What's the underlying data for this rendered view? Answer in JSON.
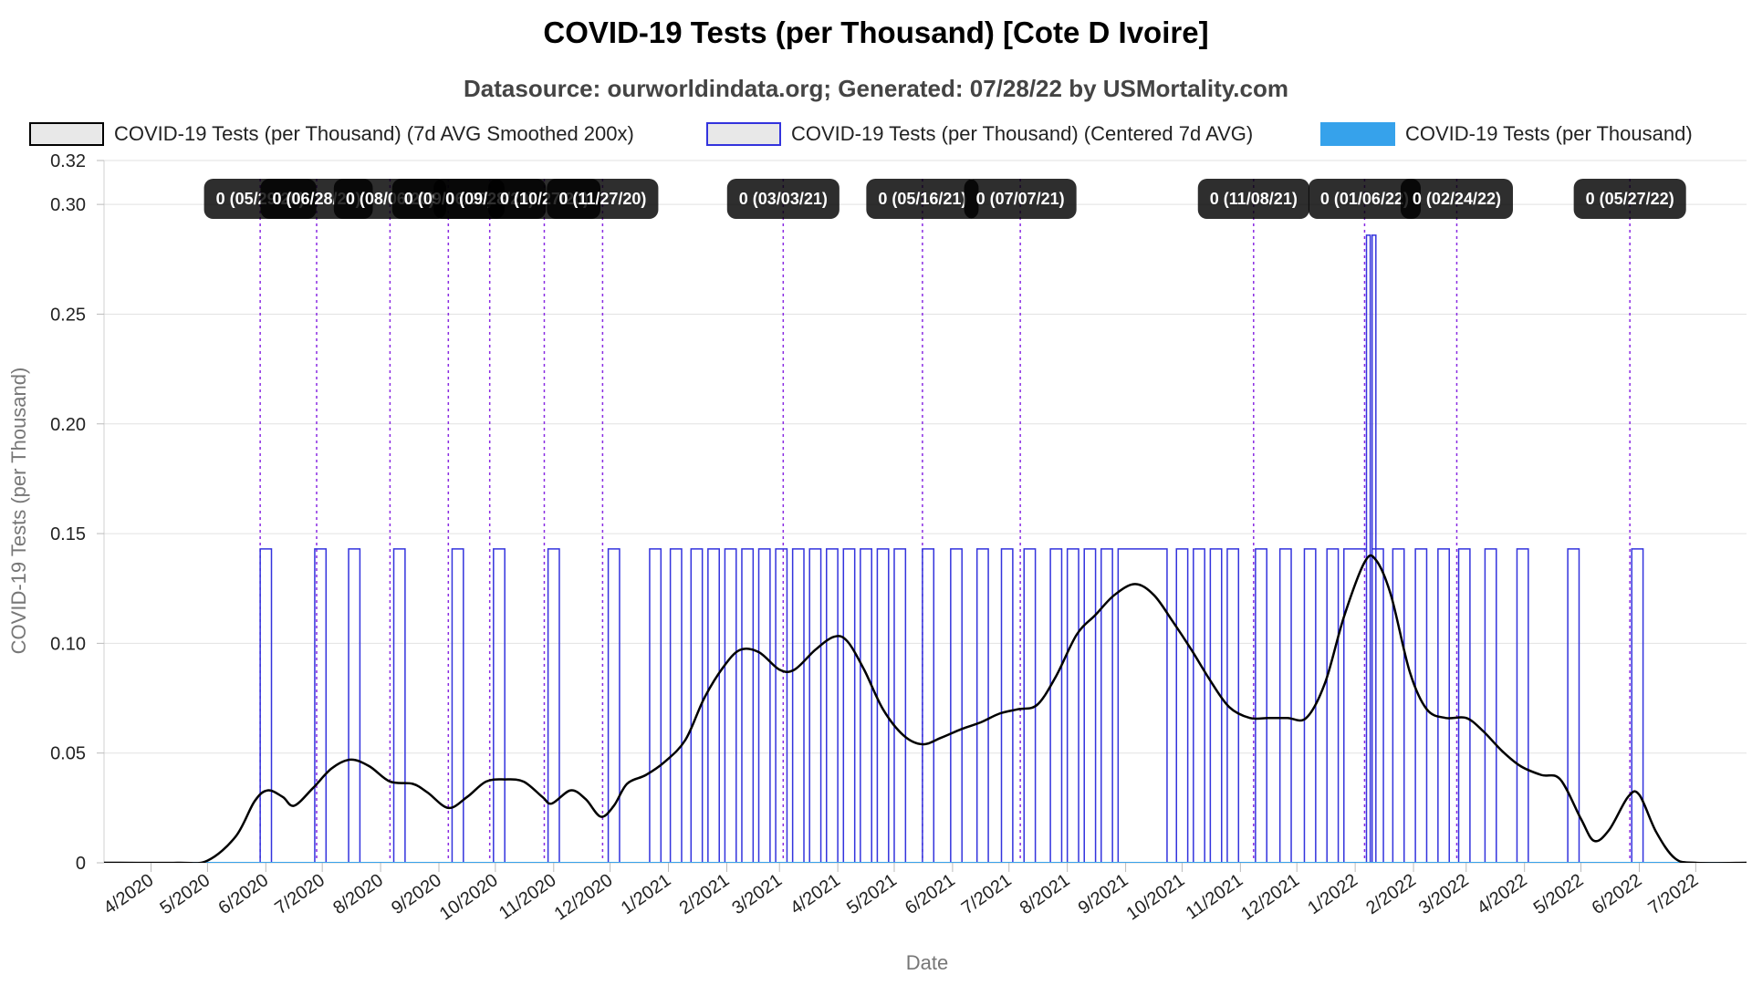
{
  "chart_data": {
    "type": "line",
    "title": "COVID-19 Tests (per Thousand) [Cote D Ivoire]",
    "subtitle": "Datasource: ourworldindata.org; Generated: 07/28/22 by USMortality.com",
    "xlabel": "Date",
    "ylabel": "COVID-19 Tests (per Thousand)",
    "ylim": [
      0,
      0.32
    ],
    "yticks": [
      {
        "value": 0,
        "label": "0"
      },
      {
        "value": 0.05,
        "label": "0.05"
      },
      {
        "value": 0.1,
        "label": "0.10"
      },
      {
        "value": 0.15,
        "label": "0.15"
      },
      {
        "value": 0.2,
        "label": "0.20"
      },
      {
        "value": 0.25,
        "label": "0.25"
      },
      {
        "value": 0.3,
        "label": "0.30"
      },
      {
        "value": 0.32,
        "label": "0.32"
      }
    ],
    "xlim": [
      "2020-03-07",
      "2022-07-28"
    ],
    "xticks": [
      {
        "date": "2020-04-01",
        "label": "4/2020"
      },
      {
        "date": "2020-05-01",
        "label": "5/2020"
      },
      {
        "date": "2020-06-01",
        "label": "6/2020"
      },
      {
        "date": "2020-07-01",
        "label": "7/2020"
      },
      {
        "date": "2020-08-01",
        "label": "8/2020"
      },
      {
        "date": "2020-09-01",
        "label": "9/2020"
      },
      {
        "date": "2020-10-01",
        "label": "10/2020"
      },
      {
        "date": "2020-11-01",
        "label": "11/2020"
      },
      {
        "date": "2020-12-01",
        "label": "12/2020"
      },
      {
        "date": "2021-01-01",
        "label": "1/2021"
      },
      {
        "date": "2021-02-01",
        "label": "2/2021"
      },
      {
        "date": "2021-03-01",
        "label": "3/2021"
      },
      {
        "date": "2021-04-01",
        "label": "4/2021"
      },
      {
        "date": "2021-05-01",
        "label": "5/2021"
      },
      {
        "date": "2021-06-01",
        "label": "6/2021"
      },
      {
        "date": "2021-07-01",
        "label": "7/2021"
      },
      {
        "date": "2021-08-01",
        "label": "8/2021"
      },
      {
        "date": "2021-09-01",
        "label": "9/2021"
      },
      {
        "date": "2021-10-01",
        "label": "10/2021"
      },
      {
        "date": "2021-11-01",
        "label": "11/2021"
      },
      {
        "date": "2021-12-01",
        "label": "12/2021"
      },
      {
        "date": "2022-01-01",
        "label": "1/2022"
      },
      {
        "date": "2022-02-01",
        "label": "2/2022"
      },
      {
        "date": "2022-03-01",
        "label": "3/2022"
      },
      {
        "date": "2022-04-01",
        "label": "4/2022"
      },
      {
        "date": "2022-05-01",
        "label": "5/2022"
      },
      {
        "date": "2022-06-01",
        "label": "6/2022"
      },
      {
        "date": "2022-07-01",
        "label": "7/2022"
      }
    ],
    "grid": true,
    "legend_placement": "top",
    "series": [
      {
        "name": "COVID-19 Tests (per Thousand) (7d AVG Smoothed 200x)",
        "color": "#000000",
        "style": "smooth-line",
        "points": [
          [
            "2020-03-07",
            0
          ],
          [
            "2020-04-15",
            0
          ],
          [
            "2020-05-01",
            0.001
          ],
          [
            "2020-05-16",
            0.012
          ],
          [
            "2020-05-26",
            0.028
          ],
          [
            "2020-06-02",
            0.033
          ],
          [
            "2020-06-10",
            0.03
          ],
          [
            "2020-06-16",
            0.026
          ],
          [
            "2020-06-26",
            0.034
          ],
          [
            "2020-07-06",
            0.043
          ],
          [
            "2020-07-16",
            0.047
          ],
          [
            "2020-07-26",
            0.044
          ],
          [
            "2020-08-06",
            0.037
          ],
          [
            "2020-08-18",
            0.036
          ],
          [
            "2020-08-26",
            0.032
          ],
          [
            "2020-09-06",
            0.025
          ],
          [
            "2020-09-16",
            0.03
          ],
          [
            "2020-09-26",
            0.037
          ],
          [
            "2020-10-06",
            0.038
          ],
          [
            "2020-10-16",
            0.037
          ],
          [
            "2020-10-26",
            0.03
          ],
          [
            "2020-10-31",
            0.027
          ],
          [
            "2020-11-10",
            0.033
          ],
          [
            "2020-11-18",
            0.029
          ],
          [
            "2020-11-26",
            0.021
          ],
          [
            "2020-12-03",
            0.026
          ],
          [
            "2020-12-10",
            0.036
          ],
          [
            "2020-12-20",
            0.04
          ],
          [
            "2020-12-30",
            0.046
          ],
          [
            "2021-01-10",
            0.056
          ],
          [
            "2021-01-20",
            0.075
          ],
          [
            "2021-01-30",
            0.089
          ],
          [
            "2021-02-08",
            0.097
          ],
          [
            "2021-02-18",
            0.096
          ],
          [
            "2021-03-01",
            0.088
          ],
          [
            "2021-03-09",
            0.088
          ],
          [
            "2021-03-20",
            0.097
          ],
          [
            "2021-03-30",
            0.103
          ],
          [
            "2021-04-06",
            0.101
          ],
          [
            "2021-04-15",
            0.088
          ],
          [
            "2021-04-25",
            0.07
          ],
          [
            "2021-05-06",
            0.058
          ],
          [
            "2021-05-16",
            0.054
          ],
          [
            "2021-05-26",
            0.057
          ],
          [
            "2021-06-06",
            0.061
          ],
          [
            "2021-06-16",
            0.064
          ],
          [
            "2021-06-26",
            0.068
          ],
          [
            "2021-07-06",
            0.07
          ],
          [
            "2021-07-16",
            0.072
          ],
          [
            "2021-07-26",
            0.085
          ],
          [
            "2021-08-06",
            0.104
          ],
          [
            "2021-08-16",
            0.113
          ],
          [
            "2021-08-26",
            0.122
          ],
          [
            "2021-09-06",
            0.127
          ],
          [
            "2021-09-16",
            0.122
          ],
          [
            "2021-09-26",
            0.11
          ],
          [
            "2021-10-06",
            0.097
          ],
          [
            "2021-10-16",
            0.083
          ],
          [
            "2021-10-26",
            0.071
          ],
          [
            "2021-11-06",
            0.066
          ],
          [
            "2021-11-16",
            0.066
          ],
          [
            "2021-11-26",
            0.066
          ],
          [
            "2021-12-06",
            0.066
          ],
          [
            "2021-12-16",
            0.082
          ],
          [
            "2021-12-26",
            0.112
          ],
          [
            "2022-01-06",
            0.137
          ],
          [
            "2022-01-12",
            0.138
          ],
          [
            "2022-01-20",
            0.122
          ],
          [
            "2022-01-30",
            0.087
          ],
          [
            "2022-02-08",
            0.07
          ],
          [
            "2022-02-18",
            0.066
          ],
          [
            "2022-03-01",
            0.066
          ],
          [
            "2022-03-10",
            0.06
          ],
          [
            "2022-03-20",
            0.051
          ],
          [
            "2022-03-30",
            0.044
          ],
          [
            "2022-04-10",
            0.04
          ],
          [
            "2022-04-20",
            0.038
          ],
          [
            "2022-05-01",
            0.02
          ],
          [
            "2022-05-08",
            0.01
          ],
          [
            "2022-05-16",
            0.015
          ],
          [
            "2022-05-26",
            0.03
          ],
          [
            "2022-06-01",
            0.031
          ],
          [
            "2022-06-10",
            0.014
          ],
          [
            "2022-06-20",
            0.002
          ],
          [
            "2022-07-01",
            0
          ],
          [
            "2022-07-28",
            0
          ]
        ]
      },
      {
        "name": "COVID-19 Tests (per Thousand) (Centered 7d AVG)",
        "color": "#3333dd",
        "style": "pulses",
        "value": 0.143,
        "pulses": [
          [
            "2020-05-29",
            "2020-06-04"
          ],
          [
            "2020-06-27",
            "2020-07-03"
          ],
          [
            "2020-07-15",
            "2020-07-21"
          ],
          [
            "2020-08-08",
            "2020-08-14"
          ],
          [
            "2020-09-08",
            "2020-09-14"
          ],
          [
            "2020-09-30",
            "2020-10-06"
          ],
          [
            "2020-10-29",
            "2020-11-04"
          ],
          [
            "2020-11-30",
            "2020-12-06"
          ],
          [
            "2020-12-22",
            "2020-12-28"
          ],
          [
            "2021-01-02",
            "2021-01-08"
          ],
          [
            "2021-01-13",
            "2021-01-19"
          ],
          [
            "2021-01-22",
            "2021-01-28"
          ],
          [
            "2021-01-31",
            "2021-02-06"
          ],
          [
            "2021-02-09",
            "2021-02-15"
          ],
          [
            "2021-02-18",
            "2021-02-24"
          ],
          [
            "2021-02-27",
            "2021-03-05"
          ],
          [
            "2021-03-08",
            "2021-03-14"
          ],
          [
            "2021-03-17",
            "2021-03-23"
          ],
          [
            "2021-03-26",
            "2021-04-01"
          ],
          [
            "2021-04-04",
            "2021-04-10"
          ],
          [
            "2021-04-13",
            "2021-04-19"
          ],
          [
            "2021-04-22",
            "2021-04-28"
          ],
          [
            "2021-05-01",
            "2021-05-07"
          ],
          [
            "2021-05-16",
            "2021-05-22"
          ],
          [
            "2021-05-31",
            "2021-06-06"
          ],
          [
            "2021-06-14",
            "2021-06-20"
          ],
          [
            "2021-06-27",
            "2021-07-03"
          ],
          [
            "2021-07-09",
            "2021-07-15"
          ],
          [
            "2021-07-23",
            "2021-07-29"
          ],
          [
            "2021-08-01",
            "2021-08-07"
          ],
          [
            "2021-08-10",
            "2021-08-16"
          ],
          [
            "2021-08-19",
            "2021-08-25"
          ],
          [
            "2021-08-28",
            "2021-09-23"
          ],
          [
            "2021-09-28",
            "2021-10-04"
          ],
          [
            "2021-10-07",
            "2021-10-13"
          ],
          [
            "2021-10-16",
            "2021-10-22"
          ],
          [
            "2021-10-25",
            "2021-10-31"
          ],
          [
            "2021-11-09",
            "2021-11-15"
          ],
          [
            "2021-11-22",
            "2021-11-28"
          ],
          [
            "2021-12-05",
            "2021-12-11"
          ],
          [
            "2021-12-17",
            "2021-12-23"
          ],
          [
            "2021-12-26",
            "2022-01-07"
          ],
          [
            "2022-01-10",
            "2022-01-16"
          ],
          [
            "2022-01-21",
            "2022-01-27"
          ],
          [
            "2022-02-02",
            "2022-02-08"
          ],
          [
            "2022-02-14",
            "2022-02-20"
          ],
          [
            "2022-02-25",
            "2022-03-03"
          ],
          [
            "2022-03-11",
            "2022-03-17"
          ],
          [
            "2022-03-28",
            "2022-04-03"
          ],
          [
            "2022-04-24",
            "2022-04-30"
          ],
          [
            "2022-05-28",
            "2022-06-03"
          ]
        ],
        "spikes": [
          [
            "2022-01-07",
            "2022-01-09",
            0.286
          ],
          [
            "2022-01-10",
            "2022-01-12",
            0.286
          ]
        ]
      },
      {
        "name": "COVID-19 Tests (per Thousand)",
        "color": "#36a2eb",
        "style": "line",
        "points": [
          [
            "2020-03-07",
            0
          ],
          [
            "2022-07-28",
            0
          ]
        ]
      }
    ],
    "annotations": [
      {
        "date": "2020-05-29",
        "label": "0 (05/29/20)"
      },
      {
        "date": "2020-06-28",
        "label": "0 (06/28/20)"
      },
      {
        "date": "2020-08-06",
        "label": "0 (08/06/20)"
      },
      {
        "date": "2020-09-06",
        "label": "0 (09/06/20)"
      },
      {
        "date": "2020-09-28",
        "label": "0 (09/28/20)"
      },
      {
        "date": "2020-10-27",
        "label": "0 (10/27/20)"
      },
      {
        "date": "2020-11-27",
        "label": "0 (11/27/20)"
      },
      {
        "date": "2021-03-03",
        "label": "0 (03/03/21)"
      },
      {
        "date": "2021-05-16",
        "label": "0 (05/16/21)"
      },
      {
        "date": "2021-07-07",
        "label": "0 (07/07/21)"
      },
      {
        "date": "2021-11-08",
        "label": "0 (11/08/21)"
      },
      {
        "date": "2022-01-06",
        "label": "0 (01/06/22)"
      },
      {
        "date": "2022-02-24",
        "label": "0 (02/24/22)"
      },
      {
        "date": "2022-05-27",
        "label": "0 (05/27/22)"
      }
    ]
  }
}
